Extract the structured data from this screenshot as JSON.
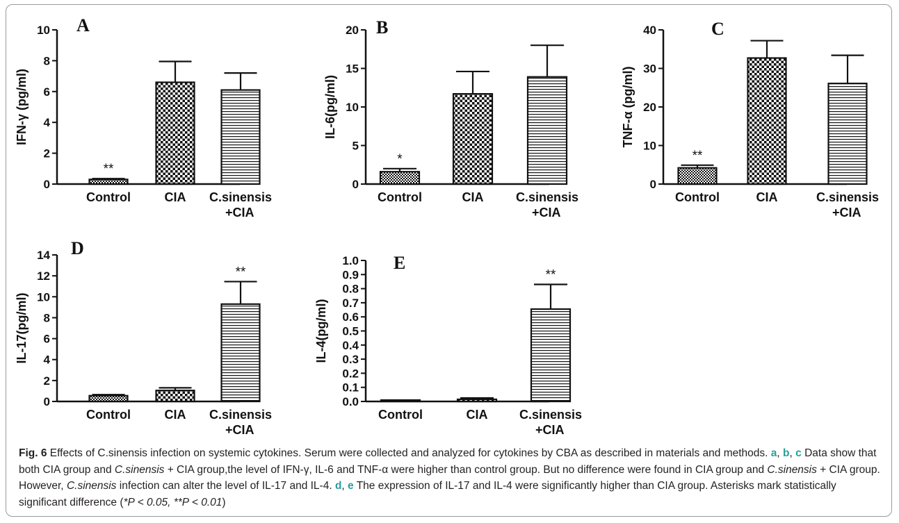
{
  "figure": {
    "fig_label": "Fig. 6",
    "caption_parts": {
      "p1": "Effects of C.sinensis infection on systemic cytokines. Serum were collected and analyzed for cytokines by CBA as described in materials and methods.",
      "ref_a": "a",
      "sep1": ", ",
      "ref_b": "b",
      "sep2": ", ",
      "ref_c": "c",
      "p2": "Data show that both CIA group and",
      "it1": "C.sinensis",
      "p3": "+ CIA group,the level of IFN-γ, IL-6 and TNF-α were higher than control group. But no difference were found in CIA group and",
      "it2": "C.sinensis",
      "p4": "+ CIA group. However,",
      "it3": "C.sinensis",
      "p5": "infection can alter the level of IL-17 and IL-4.",
      "ref_d": "d",
      "sep3": ", ",
      "ref_e": "e",
      "p6": "The expression of IL-17 and IL-4 were significantly higher than CIA group. Asterisks mark statistically significant difference (",
      "it4": "*P < 0.05, **P < 0.01",
      "p7": ")"
    }
  },
  "chart_data": [
    {
      "panel": "A",
      "type": "bar",
      "ylabel": "IFN-γ (pg/ml)",
      "ylim": [
        0,
        10
      ],
      "yticks": [
        "0",
        "2",
        "4",
        "6",
        "8",
        "10"
      ],
      "categories": [
        "Control",
        "CIA",
        "C.sinensis\n+CIA"
      ],
      "values": [
        0.3,
        6.6,
        6.1
      ],
      "errors": [
        0.05,
        1.35,
        1.1
      ],
      "annotations": [
        "**",
        "",
        ""
      ],
      "patterns": [
        "fine-check",
        "coarse-check",
        "horizontal-lines"
      ]
    },
    {
      "panel": "B",
      "type": "bar",
      "ylabel": "IL-6(pg/ml)",
      "ylim": [
        0,
        20
      ],
      "yticks": [
        "0",
        "5",
        "10",
        "15",
        "20"
      ],
      "categories": [
        "Control",
        "CIA",
        "C.sinensis\n+CIA"
      ],
      "values": [
        1.6,
        11.7,
        13.9
      ],
      "errors": [
        0.4,
        2.9,
        4.1
      ],
      "annotations": [
        "*",
        "",
        ""
      ],
      "patterns": [
        "fine-check",
        "coarse-check",
        "horizontal-lines"
      ]
    },
    {
      "panel": "C",
      "type": "bar",
      "ylabel": "TNF-α (pg/ml)",
      "ylim": [
        0,
        40
      ],
      "yticks": [
        "0",
        "10",
        "20",
        "30",
        "40"
      ],
      "categories": [
        "Control",
        "CIA",
        "C.sinensis\n+CIA"
      ],
      "values": [
        4.2,
        32.7,
        26.1
      ],
      "errors": [
        0.7,
        4.5,
        7.3
      ],
      "annotations": [
        "**",
        "",
        ""
      ],
      "patterns": [
        "fine-check",
        "coarse-check",
        "horizontal-lines"
      ]
    },
    {
      "panel": "D",
      "type": "bar",
      "ylabel": "IL-17(pg/ml)",
      "ylim": [
        0,
        14
      ],
      "yticks": [
        "0",
        "2",
        "4",
        "6",
        "8",
        "10",
        "12",
        "14"
      ],
      "categories": [
        "Control",
        "CIA",
        "C.sinensis\n+CIA"
      ],
      "values": [
        0.55,
        1.05,
        9.3
      ],
      "errors": [
        0.1,
        0.25,
        2.15
      ],
      "annotations": [
        "",
        "",
        "**"
      ],
      "patterns": [
        "fine-check",
        "coarse-check",
        "horizontal-lines"
      ]
    },
    {
      "panel": "E",
      "type": "bar",
      "ylabel": "IL-4(pg/ml)",
      "ylim": [
        0,
        1.0
      ],
      "yticks": [
        "0.0",
        "0.1",
        "0.2",
        "0.3",
        "0.4",
        "0.5",
        "0.6",
        "0.7",
        "0.8",
        "0.9",
        "1.0"
      ],
      "categories": [
        "Control",
        "CIA",
        "C.sinensis\n+CIA"
      ],
      "values": [
        0.005,
        0.015,
        0.655
      ],
      "errors": [
        0.003,
        0.01,
        0.175
      ],
      "annotations": [
        "",
        "",
        "**"
      ],
      "patterns": [
        "fine-check",
        "coarse-check",
        "horizontal-lines"
      ]
    }
  ]
}
